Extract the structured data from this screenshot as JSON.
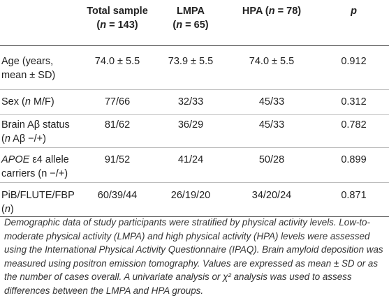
{
  "table": {
    "headers": {
      "col0": "",
      "total_line1": "Total sample",
      "total_n_var": "n",
      "total_n_value": " = 143)",
      "lmpa_line1": "LMPA",
      "lmpa_n_var": "n",
      "lmpa_n_value": " = 65)",
      "hpa_label": "HPA (",
      "hpa_n_var": "n",
      "hpa_n_value": " = 78)",
      "p": "p"
    },
    "rows": [
      {
        "label_line1": "Age (years,",
        "label_line2": "mean ± SD)",
        "total": "74.0 ± 5.5",
        "lmpa": "73.9 ± 5.5",
        "hpa": "74.0 ± 5.5",
        "p": "0.912"
      },
      {
        "label_pre": "Sex (",
        "label_var": "n",
        "label_post": " M/F)",
        "total": "77/66",
        "lmpa": "32/33",
        "hpa": "45/33",
        "p": "0.312"
      },
      {
        "label_line1": "Brain Aβ status",
        "label_line2_var": "n",
        "label_line2_post": " Aβ −/+)",
        "total": "81/62",
        "lmpa": "36/29",
        "hpa": "45/33",
        "p": "0.782"
      },
      {
        "label_gene": "APOE",
        "label_line1_post": " ε4 allele",
        "label_line2": "carriers (n −/+)",
        "total": "91/52",
        "lmpa": "41/24",
        "hpa": "50/28",
        "p": "0.899"
      },
      {
        "label_line1": "PiB/FLUTE/FBP",
        "label_line2_var": "n",
        "total": "60/39/44",
        "lmpa": "26/19/20",
        "hpa": "34/20/24",
        "p": "0.871"
      }
    ]
  },
  "footnote": "Demographic data of study participants were stratified by physical activity levels. Low-to-moderate physical activity (LMPA) and high physical activity (HPA) levels were assessed using the International Physical Activity Questionnaire (IPAQ). Brain amyloid deposition was measured using positron emission tomography. Values are expressed as mean ± SD or as the number of cases overall. A univariate analysis or χ² analysis was used to assess differences between the LMPA and HPA groups."
}
